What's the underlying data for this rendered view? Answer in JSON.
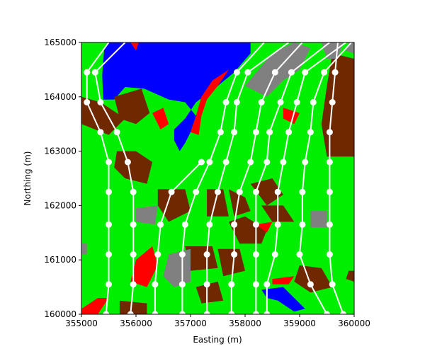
{
  "chart_data": {
    "type": "map",
    "xlabel": "Easting (m)",
    "ylabel": "Northing (m)",
    "xlim": [
      355000,
      360000
    ],
    "ylim": [
      160000,
      165000
    ],
    "xticks": [
      355000,
      356000,
      357000,
      358000,
      359000,
      360000
    ],
    "yticks": [
      160000,
      161000,
      162000,
      163000,
      164000,
      165000
    ],
    "colors": {
      "land": "#00ee00",
      "water": "#0000ff",
      "soil": "#702800",
      "rock": "#808080",
      "edge": "#ff0000",
      "path": "#ffffff"
    },
    "regions": [
      {
        "kind": "water",
        "polygon": [
          [
            355420,
            164900
          ],
          [
            355380,
            164400
          ],
          [
            355400,
            163950
          ],
          [
            355600,
            163950
          ],
          [
            355800,
            164180
          ],
          [
            356150,
            164150
          ],
          [
            356600,
            163950
          ],
          [
            356900,
            163900
          ],
          [
            357100,
            163650
          ],
          [
            357000,
            163350
          ],
          [
            356900,
            163150
          ],
          [
            356800,
            163000
          ],
          [
            356700,
            163200
          ],
          [
            356700,
            163400
          ],
          [
            356900,
            163600
          ],
          [
            357100,
            163900
          ],
          [
            357300,
            164050
          ],
          [
            357500,
            164200
          ],
          [
            357800,
            164450
          ],
          [
            358100,
            164800
          ],
          [
            358100,
            165000
          ],
          [
            355500,
            165000
          ]
        ]
      },
      {
        "kind": "edge",
        "polygon": [
          [
            357000,
            163350
          ],
          [
            357100,
            163650
          ],
          [
            357200,
            164000
          ],
          [
            357400,
            164300
          ],
          [
            357700,
            164500
          ],
          [
            357500,
            164200
          ],
          [
            357300,
            163950
          ],
          [
            357200,
            163650
          ],
          [
            357150,
            163300
          ]
        ]
      },
      {
        "kind": "edge",
        "polygon": [
          [
            356300,
            163700
          ],
          [
            356500,
            163800
          ],
          [
            356600,
            163500
          ],
          [
            356450,
            163400
          ]
        ]
      },
      {
        "kind": "soil",
        "polygon": [
          [
            355000,
            164000
          ],
          [
            355350,
            163900
          ],
          [
            355800,
            163600
          ],
          [
            355500,
            163300
          ],
          [
            355000,
            163500
          ]
        ]
      },
      {
        "kind": "soil",
        "polygon": [
          [
            355600,
            164000
          ],
          [
            356100,
            164150
          ],
          [
            356250,
            163700
          ],
          [
            356000,
            163500
          ],
          [
            355700,
            163600
          ]
        ]
      },
      {
        "kind": "soil",
        "polygon": [
          [
            355650,
            163000
          ],
          [
            356000,
            163000
          ],
          [
            356300,
            162800
          ],
          [
            356200,
            162400
          ],
          [
            355800,
            162500
          ],
          [
            355600,
            162700
          ]
        ]
      },
      {
        "kind": "soil",
        "polygon": [
          [
            356400,
            162300
          ],
          [
            356900,
            162300
          ],
          [
            357000,
            161900
          ],
          [
            356600,
            161700
          ],
          [
            356400,
            162000
          ]
        ]
      },
      {
        "kind": "soil",
        "polygon": [
          [
            357300,
            162300
          ],
          [
            357600,
            162300
          ],
          [
            357700,
            161800
          ],
          [
            357300,
            161800
          ]
        ]
      },
      {
        "kind": "soil",
        "polygon": [
          [
            357700,
            162300
          ],
          [
            358000,
            162150
          ],
          [
            358100,
            161900
          ],
          [
            357800,
            161800
          ]
        ]
      },
      {
        "kind": "soil",
        "polygon": [
          [
            357700,
            161700
          ],
          [
            358000,
            161800
          ],
          [
            358400,
            161550
          ],
          [
            358300,
            161300
          ],
          [
            357900,
            161300
          ]
        ]
      },
      {
        "kind": "soil",
        "polygon": [
          [
            358100,
            162400
          ],
          [
            358500,
            162500
          ],
          [
            358700,
            162200
          ],
          [
            358400,
            162000
          ]
        ]
      },
      {
        "kind": "soil",
        "polygon": [
          [
            358300,
            162000
          ],
          [
            358700,
            162000
          ],
          [
            358900,
            161700
          ],
          [
            358500,
            161700
          ]
        ]
      },
      {
        "kind": "soil",
        "polygon": [
          [
            356900,
            161250
          ],
          [
            357400,
            161250
          ],
          [
            357500,
            160850
          ],
          [
            357000,
            160800
          ]
        ]
      },
      {
        "kind": "soil",
        "polygon": [
          [
            357500,
            161200
          ],
          [
            357900,
            161200
          ],
          [
            358000,
            160800
          ],
          [
            357600,
            160700
          ]
        ]
      },
      {
        "kind": "soil",
        "polygon": [
          [
            357100,
            160500
          ],
          [
            357500,
            160600
          ],
          [
            357600,
            160250
          ],
          [
            357200,
            160200
          ]
        ]
      },
      {
        "kind": "soil",
        "polygon": [
          [
            355700,
            160250
          ],
          [
            356200,
            160200
          ],
          [
            356200,
            160000
          ],
          [
            355700,
            160000
          ]
        ]
      },
      {
        "kind": "soil",
        "polygon": [
          [
            359600,
            164800
          ],
          [
            360000,
            164700
          ],
          [
            360000,
            162900
          ],
          [
            359500,
            162900
          ],
          [
            359400,
            163500
          ],
          [
            359500,
            164200
          ]
        ]
      },
      {
        "kind": "soil",
        "polygon": [
          [
            359000,
            160900
          ],
          [
            359400,
            160850
          ],
          [
            359600,
            160500
          ],
          [
            359200,
            160400
          ],
          [
            358900,
            160600
          ]
        ]
      },
      {
        "kind": "soil",
        "polygon": [
          [
            359900,
            160800
          ],
          [
            360000,
            160800
          ],
          [
            360000,
            160600
          ],
          [
            359850,
            160650
          ]
        ]
      },
      {
        "kind": "rock",
        "polygon": [
          [
            358000,
            164200
          ],
          [
            358500,
            164800
          ],
          [
            358900,
            165000
          ],
          [
            359200,
            164900
          ],
          [
            359000,
            164500
          ],
          [
            358700,
            164300
          ],
          [
            358400,
            164000
          ]
        ]
      },
      {
        "kind": "rock",
        "polygon": [
          [
            359400,
            165000
          ],
          [
            359800,
            165000
          ],
          [
            359700,
            164700
          ],
          [
            359500,
            164700
          ]
        ]
      },
      {
        "kind": "rock",
        "polygon": [
          [
            359900,
            165000
          ],
          [
            360000,
            165000
          ],
          [
            360000,
            164800
          ],
          [
            359850,
            164850
          ]
        ]
      },
      {
        "kind": "rock",
        "polygon": [
          [
            356000,
            161950
          ],
          [
            356400,
            162000
          ],
          [
            356350,
            161650
          ],
          [
            356000,
            161700
          ]
        ]
      },
      {
        "kind": "rock",
        "polygon": [
          [
            356600,
            161100
          ],
          [
            357000,
            161200
          ],
          [
            357000,
            160600
          ],
          [
            356700,
            160500
          ],
          [
            356500,
            160700
          ]
        ]
      },
      {
        "kind": "rock",
        "polygon": [
          [
            359200,
            161900
          ],
          [
            359500,
            161900
          ],
          [
            359500,
            161600
          ],
          [
            359200,
            161600
          ]
        ]
      },
      {
        "kind": "rock",
        "polygon": [
          [
            355000,
            161300
          ],
          [
            355100,
            161300
          ],
          [
            355100,
            161100
          ],
          [
            355000,
            161100
          ]
        ]
      },
      {
        "kind": "edge",
        "polygon": [
          [
            356000,
            161000
          ],
          [
            356300,
            161250
          ],
          [
            356400,
            160900
          ],
          [
            356200,
            160500
          ],
          [
            355900,
            160600
          ]
        ]
      },
      {
        "kind": "edge",
        "polygon": [
          [
            355000,
            160100
          ],
          [
            355300,
            160300
          ],
          [
            355500,
            160300
          ],
          [
            355300,
            160000
          ],
          [
            355000,
            160000
          ]
        ]
      },
      {
        "kind": "edge",
        "polygon": [
          [
            358200,
            161650
          ],
          [
            358500,
            161700
          ],
          [
            358400,
            161500
          ]
        ]
      },
      {
        "kind": "edge",
        "polygon": [
          [
            358500,
            160650
          ],
          [
            358900,
            160700
          ],
          [
            358800,
            160550
          ],
          [
            358500,
            160550
          ]
        ]
      },
      {
        "kind": "water",
        "polygon": [
          [
            358300,
            160450
          ],
          [
            358700,
            160500
          ],
          [
            358900,
            160300
          ],
          [
            359100,
            160100
          ],
          [
            358900,
            160050
          ],
          [
            358600,
            160250
          ],
          [
            358400,
            160300
          ]
        ]
      },
      {
        "kind": "edge",
        "polygon": [
          [
            355900,
            165000
          ],
          [
            356050,
            165000
          ],
          [
            356000,
            164850
          ]
        ]
      },
      {
        "kind": "edge",
        "polygon": [
          [
            358700,
            163800
          ],
          [
            359000,
            163700
          ],
          [
            358900,
            163500
          ],
          [
            358700,
            163600
          ]
        ]
      }
    ],
    "paths": [
      [
        [
          355500,
          165000
        ],
        [
          355100,
          164450
        ],
        [
          355100,
          163900
        ],
        [
          355350,
          163350
        ],
        [
          355500,
          162800
        ],
        [
          355500,
          162250
        ],
        [
          355500,
          161650
        ],
        [
          355500,
          161100
        ],
        [
          355500,
          160550
        ],
        [
          355450,
          160000
        ]
      ],
      [
        [
          355800,
          165000
        ],
        [
          355250,
          164450
        ],
        [
          355350,
          163900
        ],
        [
          355650,
          163350
        ],
        [
          355850,
          162800
        ],
        [
          355950,
          162250
        ],
        [
          355950,
          161650
        ],
        [
          355950,
          161100
        ],
        [
          355950,
          160550
        ],
        [
          355900,
          160000
        ]
      ],
      [
        [
          357200,
          162800
        ],
        [
          356650,
          162250
        ],
        [
          356450,
          161650
        ],
        [
          356400,
          161100
        ],
        [
          356350,
          160550
        ],
        [
          356350,
          160000
        ]
      ],
      [
        [
          358350,
          165000
        ],
        [
          357850,
          164450
        ],
        [
          357650,
          163900
        ],
        [
          357550,
          163350
        ],
        [
          357350,
          162800
        ],
        [
          357100,
          162250
        ],
        [
          356900,
          161650
        ],
        [
          356850,
          161100
        ],
        [
          356850,
          160550
        ],
        [
          356850,
          160000
        ]
      ],
      [
        [
          358800,
          165000
        ],
        [
          358050,
          164450
        ],
        [
          357850,
          163900
        ],
        [
          357800,
          163350
        ],
        [
          357650,
          162800
        ],
        [
          357500,
          162250
        ],
        [
          357350,
          161650
        ],
        [
          357300,
          161100
        ],
        [
          357300,
          160550
        ],
        [
          357300,
          160000
        ]
      ],
      [
        [
          359050,
          165000
        ],
        [
          358550,
          164450
        ],
        [
          358300,
          163900
        ],
        [
          358200,
          163350
        ],
        [
          358100,
          162800
        ],
        [
          357900,
          162250
        ],
        [
          357800,
          161650
        ],
        [
          357800,
          161100
        ],
        [
          357750,
          160550
        ],
        [
          357750,
          160000
        ]
      ],
      [
        [
          359550,
          165000
        ],
        [
          358850,
          164450
        ],
        [
          358650,
          163900
        ],
        [
          358450,
          163350
        ],
        [
          358400,
          162800
        ],
        [
          358200,
          162250
        ],
        [
          358200,
          161650
        ],
        [
          358200,
          161100
        ],
        [
          358200,
          160550
        ],
        [
          358200,
          160000
        ]
      ],
      [
        [
          359850,
          165000
        ],
        [
          359100,
          164450
        ],
        [
          358950,
          163900
        ],
        [
          358800,
          163350
        ],
        [
          358700,
          162800
        ],
        [
          358600,
          162250
        ],
        [
          358600,
          161650
        ],
        [
          358550,
          161100
        ],
        [
          358400,
          160550
        ],
        [
          358400,
          160000
        ]
      ],
      [
        [
          359950,
          165000
        ],
        [
          359450,
          164450
        ],
        [
          359250,
          163900
        ],
        [
          359200,
          163350
        ],
        [
          359100,
          162800
        ],
        [
          359050,
          162250
        ],
        [
          359050,
          161650
        ],
        [
          359000,
          161100
        ],
        [
          359200,
          160550
        ],
        [
          359500,
          160000
        ]
      ],
      [
        [
          359700,
          165000
        ],
        [
          359650,
          164450
        ],
        [
          359600,
          163900
        ],
        [
          359550,
          163350
        ],
        [
          359550,
          162800
        ],
        [
          359550,
          162250
        ],
        [
          359550,
          161650
        ],
        [
          359550,
          161100
        ],
        [
          359600,
          160550
        ],
        [
          359800,
          160000
        ]
      ]
    ]
  }
}
